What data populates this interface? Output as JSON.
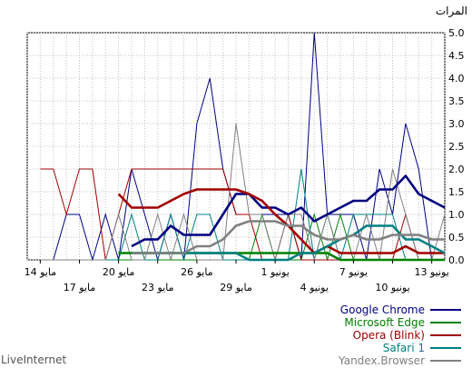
{
  "chart_data": {
    "type": "line",
    "title": "",
    "ylabel": "المرات",
    "xlabel": "",
    "ylim": [
      0,
      5
    ],
    "yticks": [
      "0.0",
      "0.5",
      "1.0",
      "1.5",
      "2.0",
      "2.5",
      "3.0",
      "3.5",
      "4.0",
      "4.5",
      "5.0"
    ],
    "grid": true,
    "x_index_range": [
      0,
      32
    ],
    "xticks_row1": [
      {
        "i": 1,
        "label": "13 يونيو"
      },
      {
        "i": 7,
        "label": "7 يونيو"
      },
      {
        "i": 13,
        "label": "1 يونيو"
      },
      {
        "i": 19,
        "label": "26 مايو"
      },
      {
        "i": 25,
        "label": "20 مايو"
      },
      {
        "i": 31,
        "label": "14 مايو"
      }
    ],
    "xticks_row2": [
      {
        "i": 4,
        "label": "10 يونيو"
      },
      {
        "i": 10,
        "label": "4 يونيو"
      },
      {
        "i": 16,
        "label": "29 مايو"
      },
      {
        "i": 22,
        "label": "23 مايو"
      },
      {
        "i": 28,
        "label": "17 مايو"
      }
    ],
    "series": [
      {
        "name": "Google Chrome",
        "color": "#000080",
        "daily": [
          0,
          0,
          2,
          3,
          1,
          2,
          0,
          1,
          1,
          1,
          5,
          0,
          1,
          1,
          1,
          1,
          1,
          2,
          4,
          3,
          0,
          1,
          0,
          1,
          2,
          0,
          1,
          0,
          1,
          1,
          0,
          0
        ],
        "avg": [
          1.15,
          1.3,
          1.45,
          1.85,
          1.55,
          1.55,
          1.3,
          1.3,
          1.15,
          1.0,
          0.85,
          1.15,
          1.0,
          1.15,
          1.15,
          1.45,
          1.45,
          1.0,
          0.55,
          0.55,
          0.55,
          0.75,
          0.45,
          0.45,
          0.3
        ]
      },
      {
        "name": "Microsoft Edge",
        "color": "#008000",
        "daily": [
          0,
          0,
          0,
          0,
          0,
          0,
          0,
          0,
          1,
          0,
          1,
          0,
          0,
          0,
          1,
          0,
          0,
          0,
          0,
          0,
          0,
          0,
          0,
          0,
          0,
          0,
          0,
          0,
          0,
          0,
          0,
          0
        ],
        "avg": [
          0,
          0,
          0,
          0,
          0,
          0,
          0,
          0,
          0,
          0.15,
          0.15,
          0.15,
          0.15,
          0.15,
          0.15,
          0.15,
          0.15,
          0.15,
          0.15,
          0.15,
          0.15,
          0.15,
          0.15,
          0.15,
          0.15,
          0.15
        ]
      },
      {
        "name": "Opera (Blink)",
        "color": "#a00000",
        "daily": [
          0,
          0,
          0,
          1,
          0,
          0,
          0,
          0,
          0,
          0,
          0,
          0,
          1,
          0,
          0,
          1,
          1,
          2,
          2,
          2,
          2,
          2,
          2,
          2,
          2,
          1,
          0,
          2,
          2,
          1,
          2,
          2
        ],
        "avg": [
          0.15,
          0.15,
          0.15,
          0.3,
          0.15,
          0.15,
          0.15,
          0.15,
          0.15,
          0.3,
          0.15,
          0.45,
          0.75,
          1.0,
          1.3,
          1.45,
          1.55,
          1.55,
          1.55,
          1.55,
          1.45,
          1.3,
          1.15,
          1.15,
          1.15,
          1.45
        ]
      },
      {
        "name": "Safari 1",
        "color": "#008080",
        "daily": [
          0,
          0,
          0,
          0,
          1,
          1,
          1,
          1,
          0,
          1,
          0,
          2,
          0,
          0,
          0,
          0,
          0,
          0,
          1,
          1,
          0,
          1,
          0,
          0,
          1,
          0,
          0,
          0,
          0,
          0,
          0,
          0
        ],
        "avg": [
          0.15,
          0.3,
          0.45,
          0.45,
          0.75,
          0.75,
          0.75,
          0.55,
          0.45,
          0.3,
          0.15,
          0.15,
          0.0,
          0.0,
          0.0,
          0.0,
          0.15,
          0.15,
          0.15,
          0.15,
          0.15,
          0.15,
          0.15,
          0.15,
          0.15
        ]
      },
      {
        "name": "Yandex.Browser",
        "color": "#808080",
        "daily": [
          1,
          0,
          0,
          1,
          2,
          0,
          1,
          0,
          0,
          1,
          0,
          1,
          1,
          0,
          1,
          1,
          3,
          0,
          0,
          0,
          1,
          0,
          1,
          0,
          0,
          1,
          0,
          0,
          0,
          0,
          0,
          0
        ],
        "avg": [
          0.45,
          0.45,
          0.55,
          0.55,
          0.55,
          0.45,
          0.45,
          0.55,
          0.45,
          0.45,
          0.55,
          0.75,
          0.75,
          0.85,
          0.85,
          0.85,
          0.75,
          0.45,
          0.3,
          0.3,
          0.15,
          0.15,
          0.15,
          0.15,
          0.15
        ]
      }
    ]
  },
  "credit": "LiveInternet"
}
